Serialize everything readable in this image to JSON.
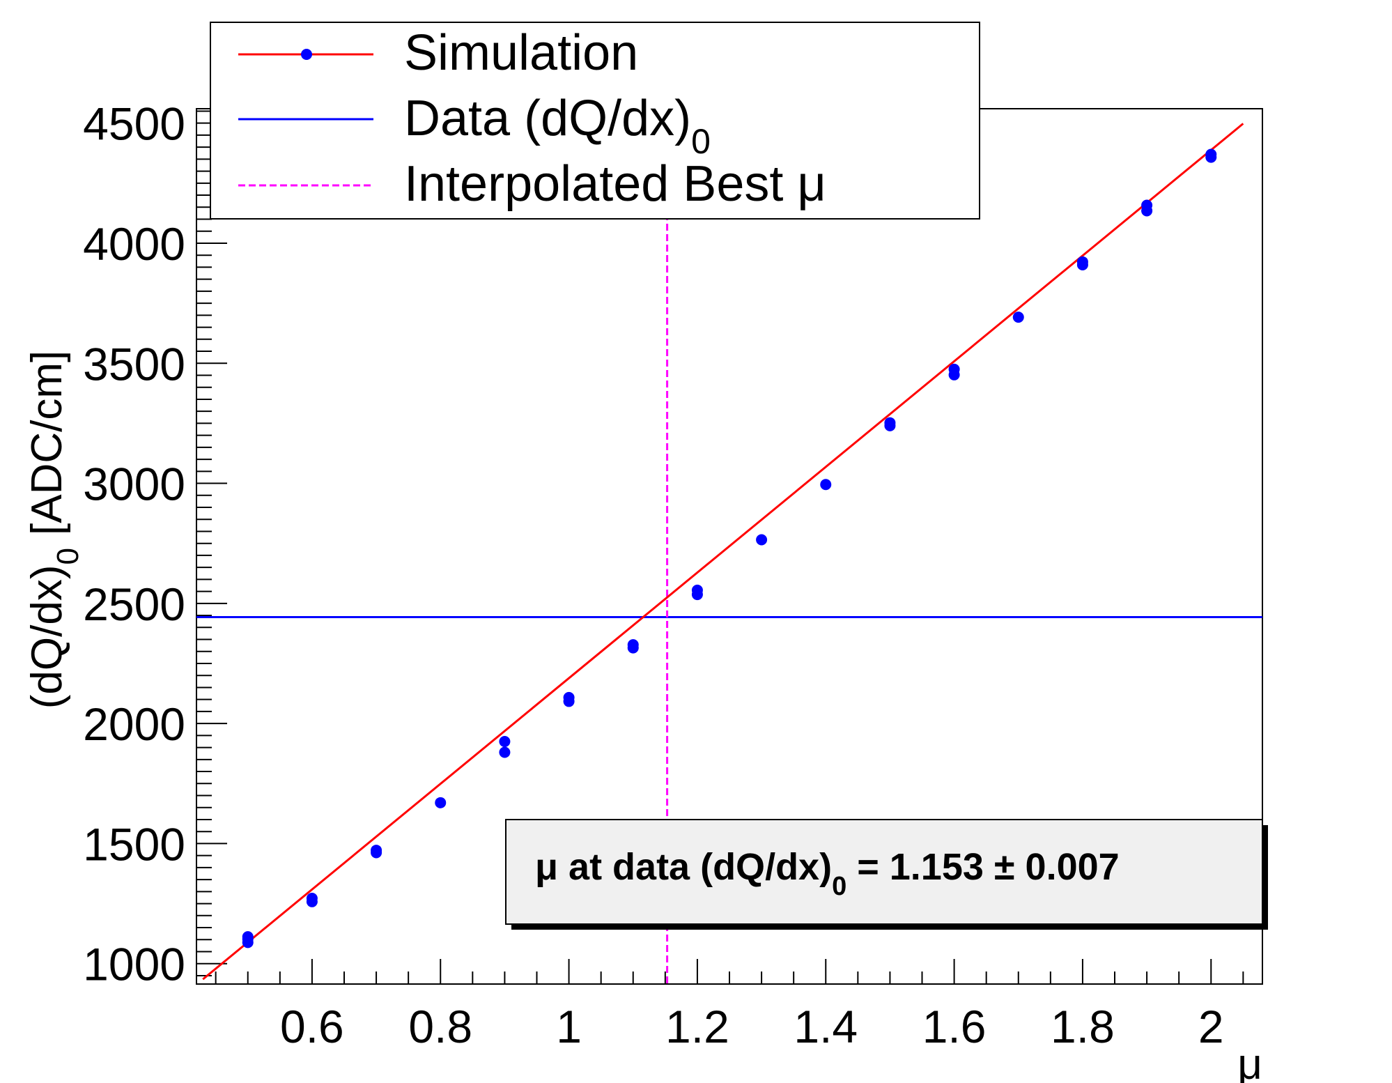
{
  "chart_data": {
    "type": "scatter",
    "xlabel": "μ",
    "ylabel_main": "(dQ/dx)",
    "ylabel_sub": "0",
    "ylabel_unit": "[ADC/cm]",
    "xlim": [
      0.42,
      2.08
    ],
    "ylim": [
      915,
      4560
    ],
    "x_ticks": [
      0.6,
      0.8,
      1,
      1.2,
      1.4,
      1.6,
      1.8,
      2
    ],
    "x_tick_labels": [
      "0.6",
      "0.8",
      "1",
      "1.2",
      "1.4",
      "1.6",
      "1.8",
      "2"
    ],
    "y_ticks": [
      1000,
      1500,
      2000,
      2500,
      3000,
      3500,
      4000,
      4500
    ],
    "y_tick_labels": [
      "1000",
      "1500",
      "2000",
      "2500",
      "3000",
      "3500",
      "4000",
      "4500"
    ],
    "series": [
      {
        "name": "Simulation",
        "marker_color": "#0000ff",
        "line_color": "#ff0000",
        "points": [
          {
            "x": 0.5,
            "y": 1088
          },
          {
            "x": 0.5,
            "y": 1102
          },
          {
            "x": 0.5,
            "y": 1112
          },
          {
            "x": 0.6,
            "y": 1258
          },
          {
            "x": 0.6,
            "y": 1272
          },
          {
            "x": 0.7,
            "y": 1462
          },
          {
            "x": 0.7,
            "y": 1472
          },
          {
            "x": 0.8,
            "y": 1670
          },
          {
            "x": 0.9,
            "y": 1880
          },
          {
            "x": 0.9,
            "y": 1925
          },
          {
            "x": 1.0,
            "y": 2092
          },
          {
            "x": 1.0,
            "y": 2108
          },
          {
            "x": 1.1,
            "y": 2315
          },
          {
            "x": 1.1,
            "y": 2328
          },
          {
            "x": 1.2,
            "y": 2537
          },
          {
            "x": 1.2,
            "y": 2555
          },
          {
            "x": 1.3,
            "y": 2765
          },
          {
            "x": 1.4,
            "y": 2995
          },
          {
            "x": 1.5,
            "y": 3240
          },
          {
            "x": 1.5,
            "y": 3252
          },
          {
            "x": 1.6,
            "y": 3452
          },
          {
            "x": 1.6,
            "y": 3475
          },
          {
            "x": 1.7,
            "y": 3692
          },
          {
            "x": 1.8,
            "y": 3910
          },
          {
            "x": 1.8,
            "y": 3922
          },
          {
            "x": 1.9,
            "y": 4135
          },
          {
            "x": 1.9,
            "y": 4158
          },
          {
            "x": 2.0,
            "y": 4358
          },
          {
            "x": 2.0,
            "y": 4370
          }
        ],
        "fit_line": {
          "x": [
            0.43,
            2.05
          ],
          "y": [
            935,
            4498
          ]
        }
      },
      {
        "name": "Data (dQ/dx)",
        "name_sub": "0",
        "line_color": "#0000ff",
        "constant_y": 2443
      },
      {
        "name": "Interpolated Best μ",
        "line_color": "#ff00ff",
        "constant_x": 1.153
      }
    ],
    "legend": {
      "placement": "top-left",
      "entries": [
        {
          "label": "Simulation",
          "label_sub": ""
        },
        {
          "label": "Data (dQ/dx)",
          "label_sub": "0"
        },
        {
          "label": "Interpolated Best μ",
          "label_sub": ""
        }
      ]
    },
    "result_box": {
      "prefix": "μ at data (dQ/dx)",
      "sub": "0",
      "value_text": " = 1.153 ± 0.007",
      "value": 1.153,
      "error": 0.007
    },
    "grid": false
  }
}
